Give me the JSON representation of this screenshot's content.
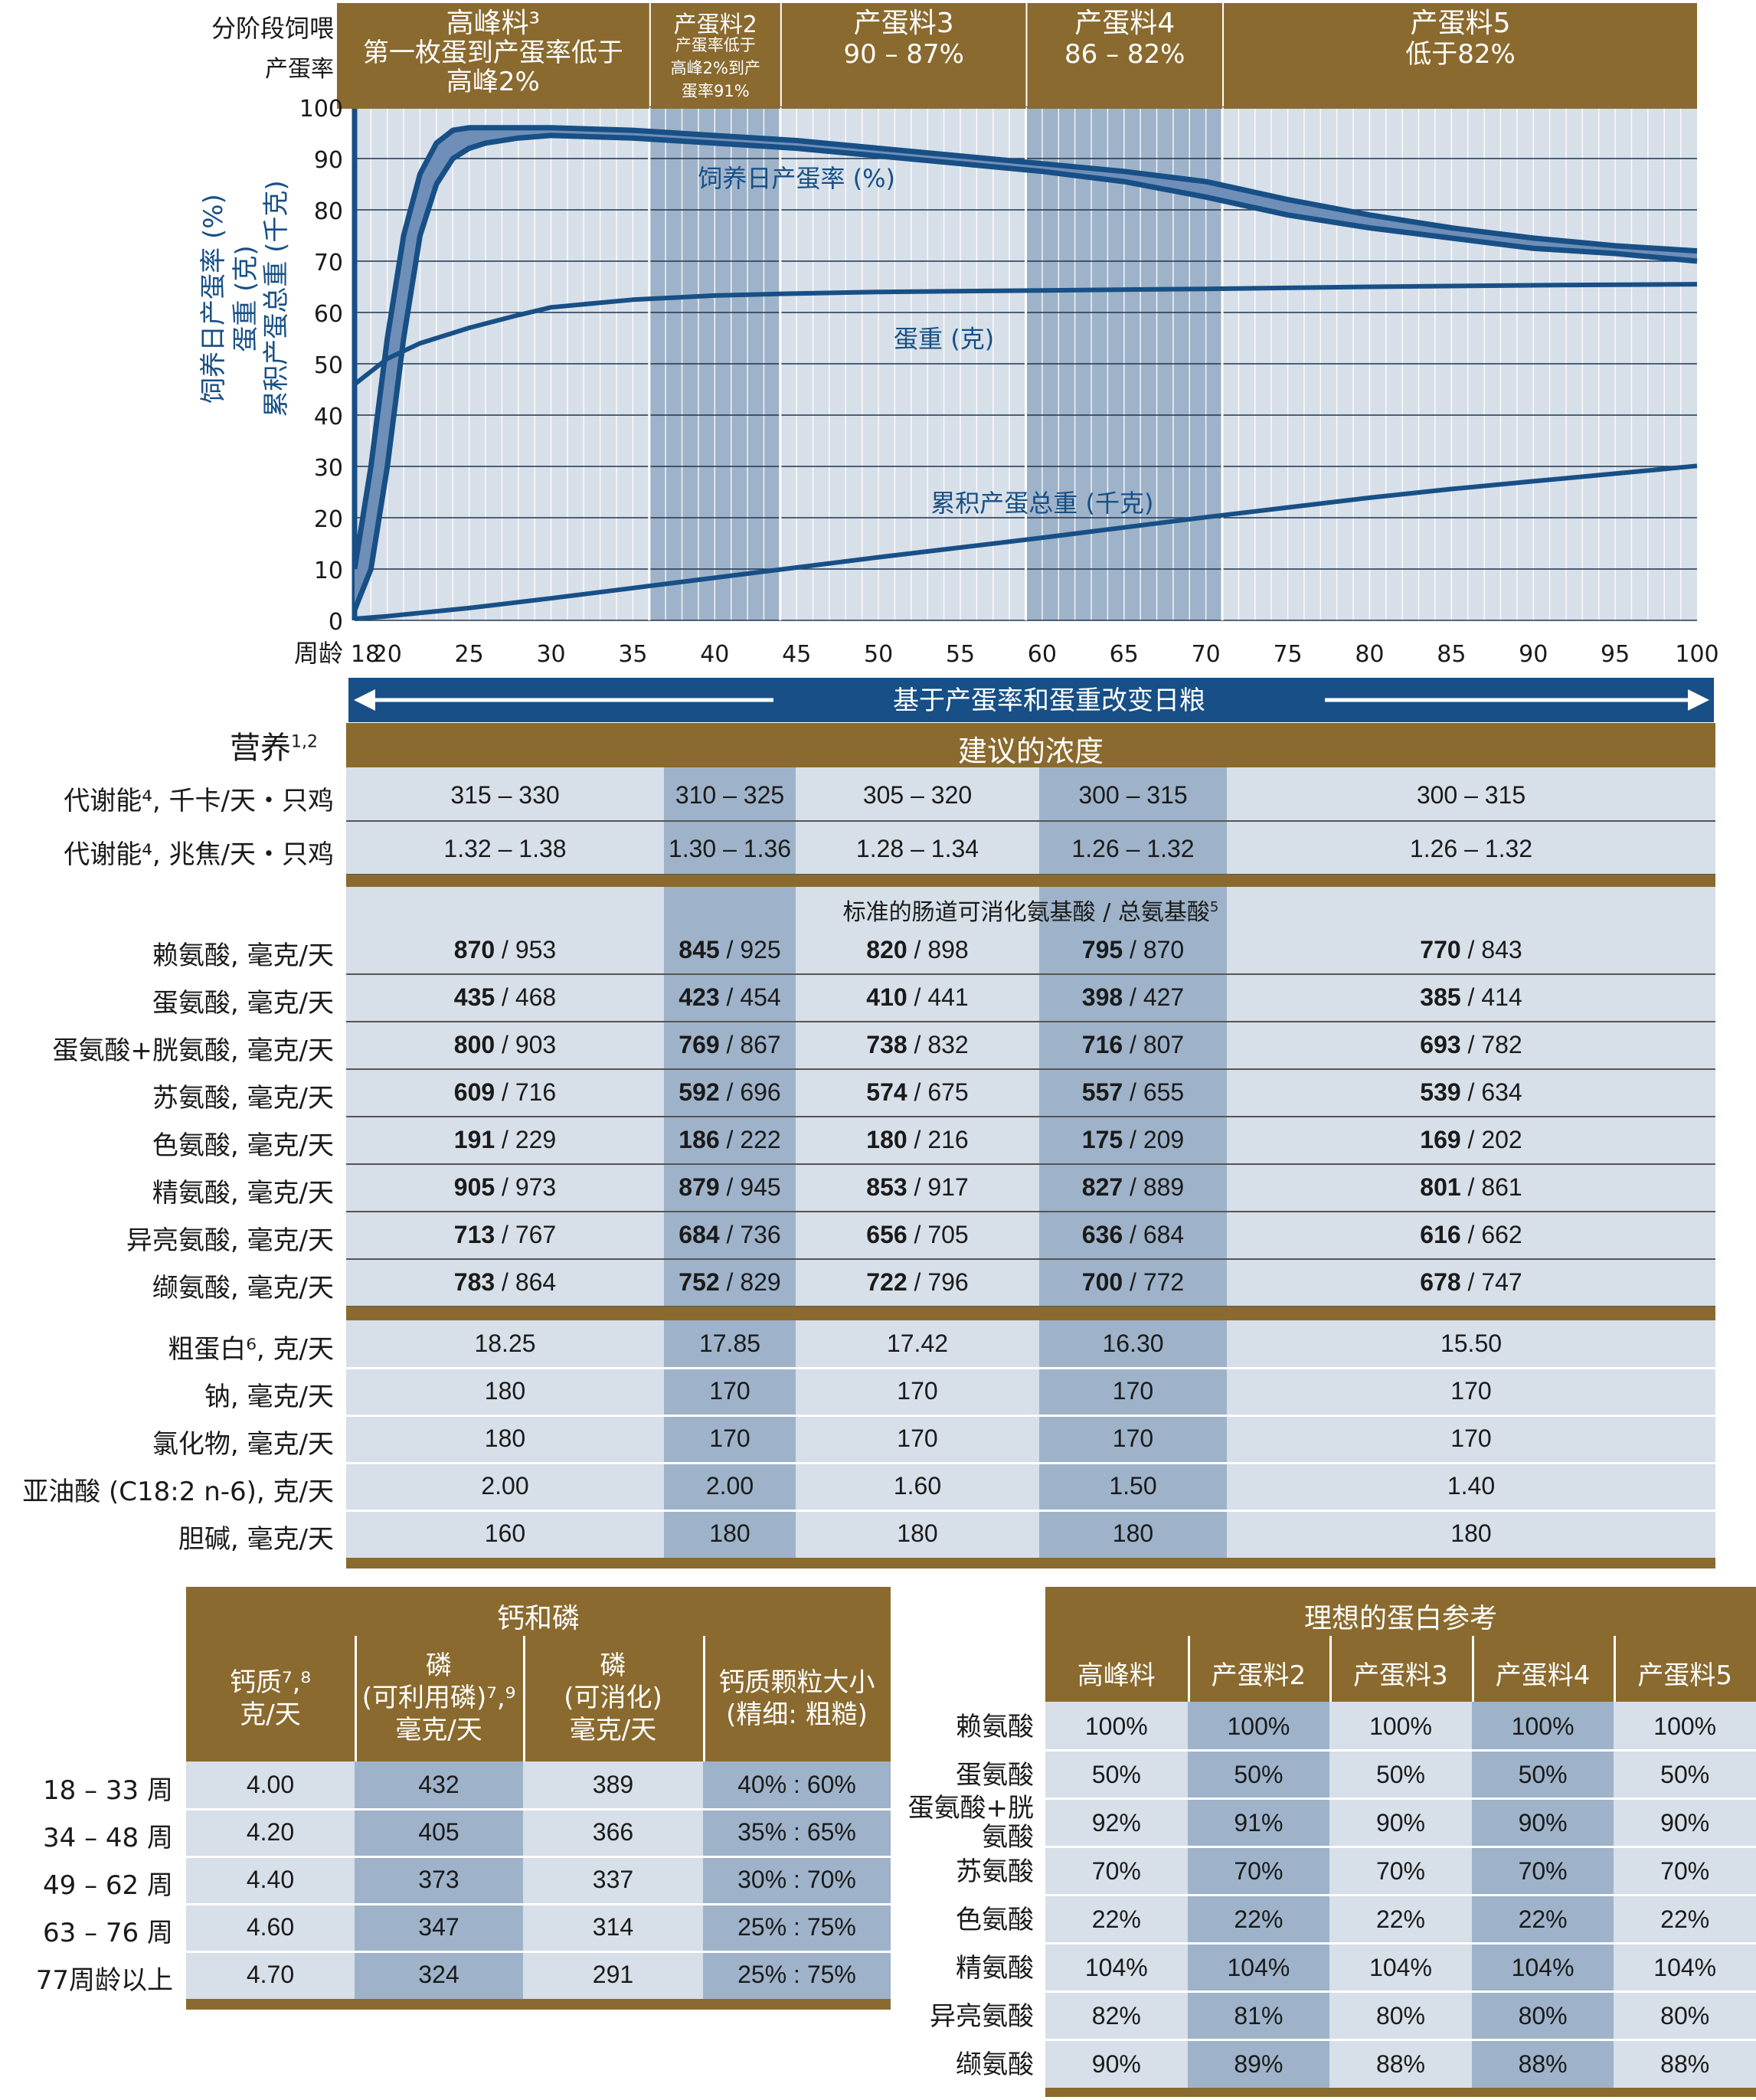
{
  "chart": {
    "top_left_label": "分阶段饲喂",
    "top_left_sub": "产蛋率",
    "phases": [
      {
        "title": "高峰料³",
        "desc": "第一枚蛋到产蛋率低于高峰2%",
        "start": 18,
        "end": 36
      },
      {
        "title": "产蛋料2",
        "desc": "产蛋率低于高峰2%到产蛋率91%",
        "start": 36,
        "end": 44
      },
      {
        "title": "产蛋料3",
        "desc": "90 – 87%",
        "start": 44,
        "end": 59
      },
      {
        "title": "产蛋料4",
        "desc": "86 – 82%",
        "start": 59,
        "end": 71
      },
      {
        "title": "产蛋料5",
        "desc": "低于82%",
        "start": 71,
        "end": 100
      }
    ],
    "y_axis_title_1": "饲养日产蛋率 (%)",
    "y_axis_title_2": "蛋重 (克)",
    "y_axis_title_3": "累积产蛋总重 (千克)",
    "x_axis_label": "周龄",
    "arrow_label": "基于产蛋率和蛋重改变日粮",
    "curve_labels": {
      "hd": "饲养日产蛋率 (%)",
      "egg": "蛋重 (克)",
      "mass": "累积产蛋总重 (千克)"
    },
    "colors": {
      "gold": "#8a6a2e",
      "blue": "#174f86",
      "shade": "#9eb3c9",
      "grid": "#d7dfe8"
    }
  },
  "chart_data": {
    "type": "line",
    "xlabel": "周龄",
    "xlim": [
      18,
      100
    ],
    "ylim": [
      0,
      100
    ],
    "x_ticks": [
      18,
      20,
      25,
      30,
      35,
      40,
      45,
      50,
      55,
      60,
      65,
      70,
      75,
      80,
      85,
      90,
      95,
      100
    ],
    "y_ticks": [
      0,
      10,
      20,
      30,
      40,
      50,
      60,
      70,
      80,
      90,
      100
    ],
    "series": [
      {
        "name": "饲养日产蛋率 (%) 上限",
        "x": [
          18,
          19,
          20,
          21,
          22,
          23,
          24,
          25,
          26,
          28,
          30,
          35,
          40,
          45,
          50,
          55,
          60,
          65,
          70,
          75,
          80,
          85,
          90,
          95,
          100
        ],
        "y": [
          10,
          30,
          55,
          75,
          87,
          93,
          95.5,
          96,
          96,
          96,
          96,
          95.5,
          94.5,
          93.5,
          92,
          90.5,
          89,
          87.5,
          85.5,
          82,
          79,
          76.5,
          74.5,
          73,
          72
        ]
      },
      {
        "name": "饲养日产蛋率 (%) 下限",
        "x": [
          18,
          19,
          20,
          21,
          22,
          23,
          24,
          25,
          26,
          28,
          30,
          35,
          40,
          45,
          50,
          55,
          60,
          65,
          70,
          75,
          80,
          85,
          90,
          95,
          100
        ],
        "y": [
          2,
          10,
          30,
          55,
          75,
          85,
          90,
          92,
          93,
          94,
          94.5,
          94,
          93,
          92,
          90.5,
          89,
          87.5,
          85.5,
          82.5,
          79,
          76.5,
          74.5,
          72.5,
          71.5,
          70
        ]
      },
      {
        "name": "蛋重 (克)",
        "x": [
          18,
          20,
          22,
          25,
          28,
          30,
          35,
          40,
          45,
          50,
          60,
          70,
          80,
          90,
          100
        ],
        "y": [
          46,
          51,
          54,
          57,
          59.5,
          61,
          62.5,
          63.3,
          63.7,
          64,
          64.3,
          64.6,
          65,
          65.3,
          65.5
        ]
      },
      {
        "name": "累积产蛋总重 (千克)",
        "x": [
          18,
          20,
          25,
          30,
          35,
          40,
          45,
          50,
          55,
          60,
          65,
          70,
          75,
          80,
          85,
          90,
          95,
          100
        ],
        "y": [
          0.3,
          0.8,
          2.4,
          4.3,
          6.3,
          8.3,
          10.3,
          12.3,
          14.2,
          16.1,
          18.1,
          20.1,
          22,
          23.9,
          25.6,
          27.1,
          28.6,
          30.1
        ]
      }
    ]
  },
  "nutrition": {
    "nutrient_label": "营养",
    "nutrient_sup": "1,2",
    "conc_title": "建议的浓度",
    "amino_header": "标准的肠道可消化氨基酸 / 总氨基酸",
    "amino_sup": "5",
    "energy_rows": [
      {
        "label": "代谢能⁴, 千卡/天・只鸡",
        "values": [
          "315 – 330",
          "310 – 325",
          "305 – 320",
          "300 – 315",
          "300 – 315"
        ]
      },
      {
        "label": "代谢能⁴, 兆焦/天・只鸡",
        "values": [
          "1.32 – 1.38",
          "1.30 – 1.36",
          "1.28 – 1.34",
          "1.26 – 1.32",
          "1.26 – 1.32"
        ]
      }
    ],
    "amino_rows": [
      {
        "label": "赖氨酸, 毫克/天",
        "values": [
          [
            "870",
            "953"
          ],
          [
            "845",
            "925"
          ],
          [
            "820",
            "898"
          ],
          [
            "795",
            "870"
          ],
          [
            "770",
            "843"
          ]
        ]
      },
      {
        "label": "蛋氨酸, 毫克/天",
        "values": [
          [
            "435",
            "468"
          ],
          [
            "423",
            "454"
          ],
          [
            "410",
            "441"
          ],
          [
            "398",
            "427"
          ],
          [
            "385",
            "414"
          ]
        ]
      },
      {
        "label": "蛋氨酸+胱氨酸, 毫克/天",
        "values": [
          [
            "800",
            "903"
          ],
          [
            "769",
            "867"
          ],
          [
            "738",
            "832"
          ],
          [
            "716",
            "807"
          ],
          [
            "693",
            "782"
          ]
        ]
      },
      {
        "label": "苏氨酸, 毫克/天",
        "values": [
          [
            "609",
            "716"
          ],
          [
            "592",
            "696"
          ],
          [
            "574",
            "675"
          ],
          [
            "557",
            "655"
          ],
          [
            "539",
            "634"
          ]
        ]
      },
      {
        "label": "色氨酸, 毫克/天",
        "values": [
          [
            "191",
            "229"
          ],
          [
            "186",
            "222"
          ],
          [
            "180",
            "216"
          ],
          [
            "175",
            "209"
          ],
          [
            "169",
            "202"
          ]
        ]
      },
      {
        "label": "精氨酸, 毫克/天",
        "values": [
          [
            "905",
            "973"
          ],
          [
            "879",
            "945"
          ],
          [
            "853",
            "917"
          ],
          [
            "827",
            "889"
          ],
          [
            "801",
            "861"
          ]
        ]
      },
      {
        "label": "异亮氨酸, 毫克/天",
        "values": [
          [
            "713",
            "767"
          ],
          [
            "684",
            "736"
          ],
          [
            "656",
            "705"
          ],
          [
            "636",
            "684"
          ],
          [
            "616",
            "662"
          ]
        ]
      },
      {
        "label": "缬氨酸, 毫克/天",
        "values": [
          [
            "783",
            "864"
          ],
          [
            "752",
            "829"
          ],
          [
            "722",
            "796"
          ],
          [
            "700",
            "772"
          ],
          [
            "678",
            "747"
          ]
        ]
      }
    ],
    "other_rows": [
      {
        "label": "粗蛋白⁶, 克/天",
        "values": [
          "18.25",
          "17.85",
          "17.42",
          "16.30",
          "15.50"
        ]
      },
      {
        "label": "钠, 毫克/天",
        "values": [
          "180",
          "170",
          "170",
          "170",
          "170"
        ]
      },
      {
        "label": "氯化物, 毫克/天",
        "values": [
          "180",
          "170",
          "170",
          "170",
          "170"
        ]
      },
      {
        "label": "亚油酸 (C18:2 n-6), 克/天",
        "values": [
          "2.00",
          "2.00",
          "1.60",
          "1.50",
          "1.40"
        ]
      },
      {
        "label": "胆碱, 毫克/天",
        "values": [
          "160",
          "180",
          "180",
          "180",
          "180"
        ]
      }
    ]
  },
  "calcium": {
    "title": "钙和磷",
    "headers": [
      "钙质⁷,⁸\n克/天",
      "磷\n(可利用磷)⁷,⁹\n毫克/天",
      "磷\n(可消化)\n毫克/天",
      "钙质颗粒大小\n(精细: 粗糙)"
    ],
    "rows": [
      {
        "label": "18 – 33 周",
        "values": [
          "4.00",
          "432",
          "389",
          "40% : 60%"
        ]
      },
      {
        "label": "34 – 48 周",
        "values": [
          "4.20",
          "405",
          "366",
          "35% : 65%"
        ]
      },
      {
        "label": "49 – 62 周",
        "values": [
          "4.40",
          "373",
          "337",
          "30% : 70%"
        ]
      },
      {
        "label": "63 – 76 周",
        "values": [
          "4.60",
          "347",
          "314",
          "25% : 75%"
        ]
      },
      {
        "label": "77周龄以上",
        "values": [
          "4.70",
          "324",
          "291",
          "25% : 75%"
        ]
      }
    ]
  },
  "ideal": {
    "title": "理想的蛋白参考",
    "headers": [
      "高峰料",
      "产蛋料2",
      "产蛋料3",
      "产蛋料4",
      "产蛋料5"
    ],
    "rows": [
      {
        "label": "赖氨酸",
        "values": [
          "100%",
          "100%",
          "100%",
          "100%",
          "100%"
        ]
      },
      {
        "label": "蛋氨酸",
        "values": [
          "50%",
          "50%",
          "50%",
          "50%",
          "50%"
        ]
      },
      {
        "label": "蛋氨酸+胱\n氨酸",
        "values": [
          "92%",
          "91%",
          "90%",
          "90%",
          "90%"
        ]
      },
      {
        "label": "苏氨酸",
        "values": [
          "70%",
          "70%",
          "70%",
          "70%",
          "70%"
        ]
      },
      {
        "label": "色氨酸",
        "values": [
          "22%",
          "22%",
          "22%",
          "22%",
          "22%"
        ]
      },
      {
        "label": "精氨酸",
        "values": [
          "104%",
          "104%",
          "104%",
          "104%",
          "104%"
        ]
      },
      {
        "label": "异亮氨酸",
        "values": [
          "82%",
          "81%",
          "80%",
          "80%",
          "80%"
        ]
      },
      {
        "label": "缬氨酸",
        "values": [
          "90%",
          "89%",
          "88%",
          "88%",
          "88%"
        ]
      }
    ]
  }
}
